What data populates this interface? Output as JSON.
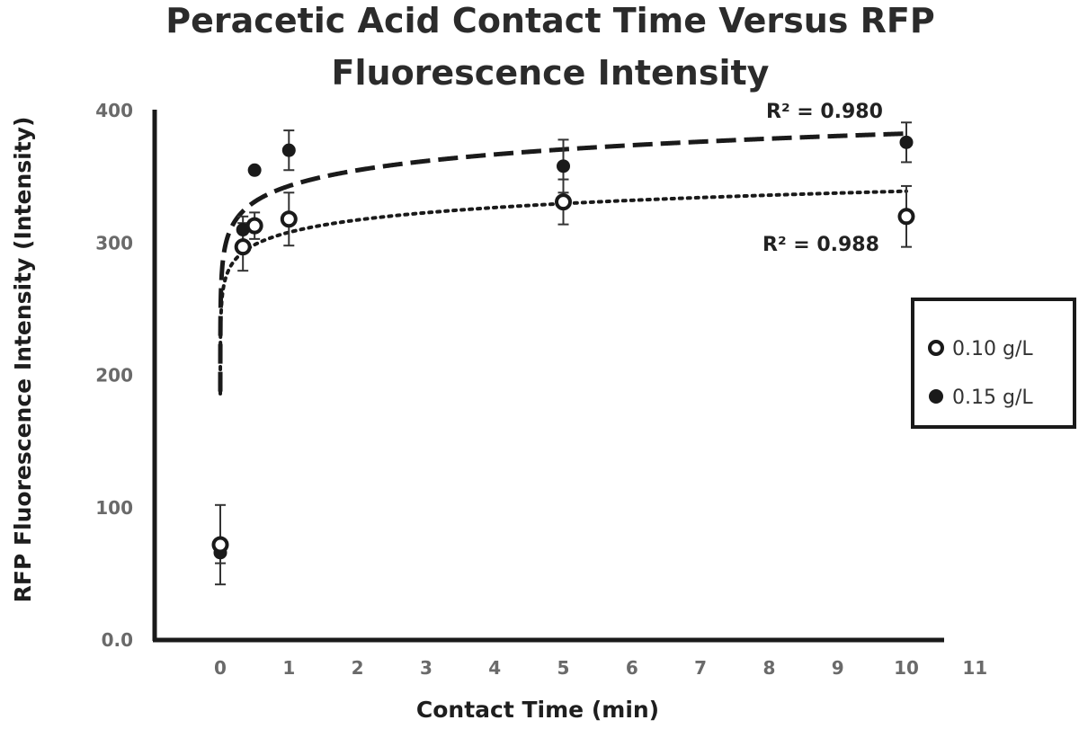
{
  "chart_data": {
    "type": "scatter",
    "title_lines": [
      "Peracetic Acid Contact Time Versus RFP",
      "Fluorescence Intensity"
    ],
    "xlabel": "Contact Time (min)",
    "ylabel": "RFP Fluorescence Intensity (Intensity)",
    "xlim": [
      -1,
      11
    ],
    "ylim": [
      0,
      400
    ],
    "x_ticks": [
      0,
      1,
      2,
      3,
      4,
      5,
      6,
      7,
      8,
      9,
      10,
      11
    ],
    "x_tick_labels": [
      "0",
      "1",
      "2",
      "3",
      "4",
      "5",
      "6",
      "7",
      "8",
      "9",
      "10",
      "11"
    ],
    "y_ticks": [
      0,
      100,
      200,
      300,
      400
    ],
    "y_tick_labels": [
      "0.0",
      "100",
      "200",
      "300",
      "400"
    ],
    "grid": false,
    "legend_position": "right",
    "series": [
      {
        "name": "0.10 g/L",
        "marker": "open-circle",
        "x": [
          0,
          0.33,
          0.5,
          1,
          5,
          10
        ],
        "y": [
          72,
          297,
          313,
          318,
          331,
          320
        ],
        "error": [
          30,
          18,
          10,
          20,
          17,
          23
        ],
        "trendline": {
          "style": "dotted",
          "a": 308,
          "b": 13.5
        },
        "r2_label": "R² = 0.988"
      },
      {
        "name": "0.15 g/L",
        "marker": "filled-circle",
        "x": [
          0,
          0.33,
          0.5,
          1,
          5,
          10
        ],
        "y": [
          66,
          310,
          355,
          370,
          358,
          376
        ],
        "error": [
          8,
          10,
          2,
          15,
          20,
          15
        ],
        "trendline": {
          "style": "dashed",
          "a": 343,
          "b": 17.2
        },
        "r2_label": "R² = 0.980"
      }
    ]
  }
}
